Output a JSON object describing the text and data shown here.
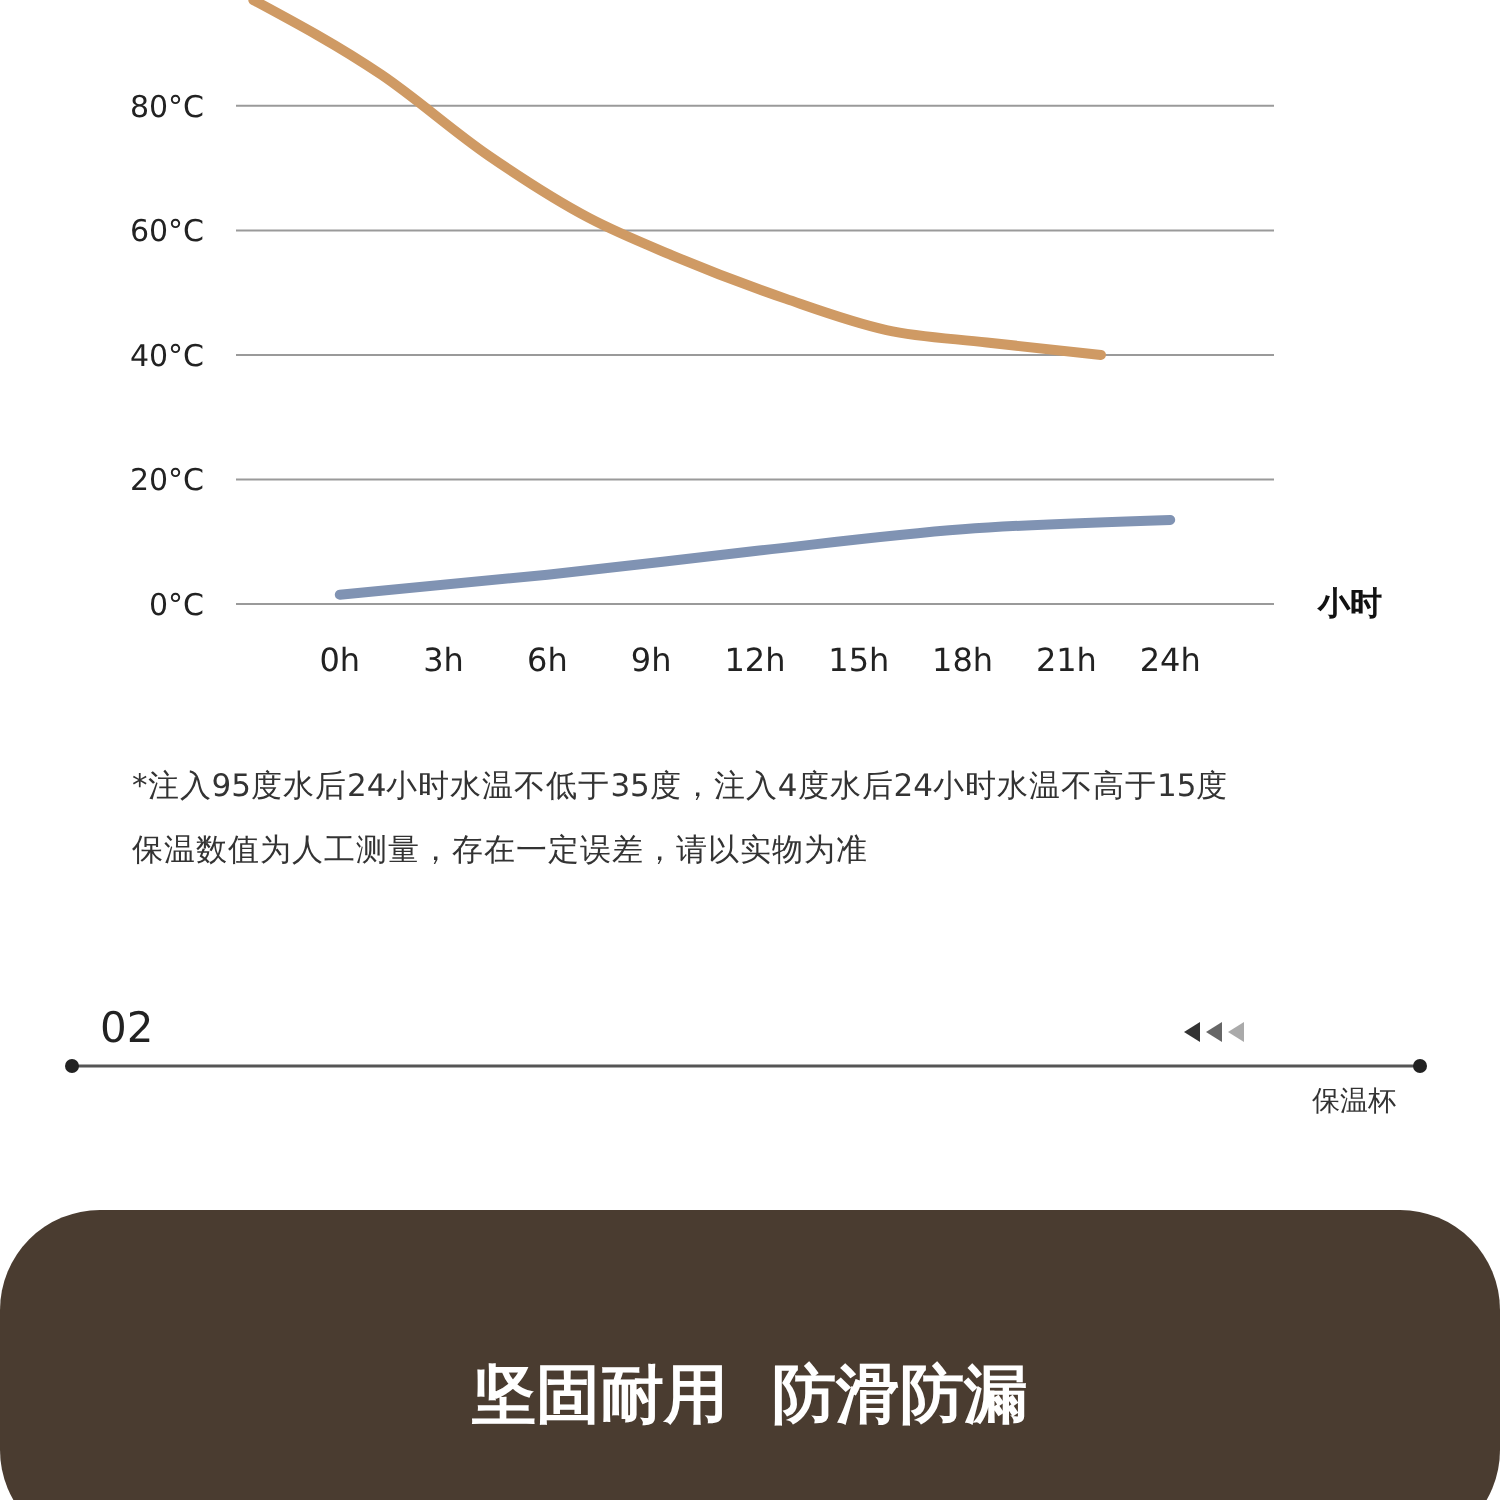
{
  "chart_data": {
    "type": "line",
    "xlabel": "小时",
    "series": [
      {
        "color": "#cf9a64",
        "x": [
          -2.5,
          1.2,
          4.3,
          7.2,
          9.6,
          12.9,
          15.8,
          18.7,
          22
        ],
        "values": [
          97,
          85,
          72,
          62,
          56,
          49,
          44,
          42,
          40
        ]
      },
      {
        "color": "#8093b3",
        "x": [
          0,
          6,
          12,
          18,
          24
        ],
        "values": [
          1.5,
          4.7,
          8.5,
          12,
          13.5
        ]
      }
    ],
    "xlim": [
      -3,
      27
    ],
    "xticks": [
      {
        "value": 0,
        "label": "0h"
      },
      {
        "value": 3,
        "label": "3h"
      },
      {
        "value": 6,
        "label": "6h"
      },
      {
        "value": 9,
        "label": "9h"
      },
      {
        "value": 12,
        "label": "12h"
      },
      {
        "value": 15,
        "label": "15h"
      },
      {
        "value": 18,
        "label": "18h"
      },
      {
        "value": 21,
        "label": "21h"
      },
      {
        "value": 24,
        "label": "24h"
      }
    ],
    "ylim": [
      0,
      97
    ],
    "yticks": [
      {
        "value": 0,
        "label": "0°C"
      },
      {
        "value": 20,
        "label": "20°C"
      },
      {
        "value": 40,
        "label": "40°C"
      },
      {
        "value": 60,
        "label": "60°C"
      },
      {
        "value": 80,
        "label": "80°C"
      }
    ],
    "grid": "y",
    "annotations": [
      "*注入95度水后24小时水温不低于35度，注入4度水后24小时水温不高于15度",
      "保温数值为人工测量，存在一定误差，请以实物为准",
      "02",
      "保温杯",
      "坚固耐用  防滑防漏"
    ]
  }
}
